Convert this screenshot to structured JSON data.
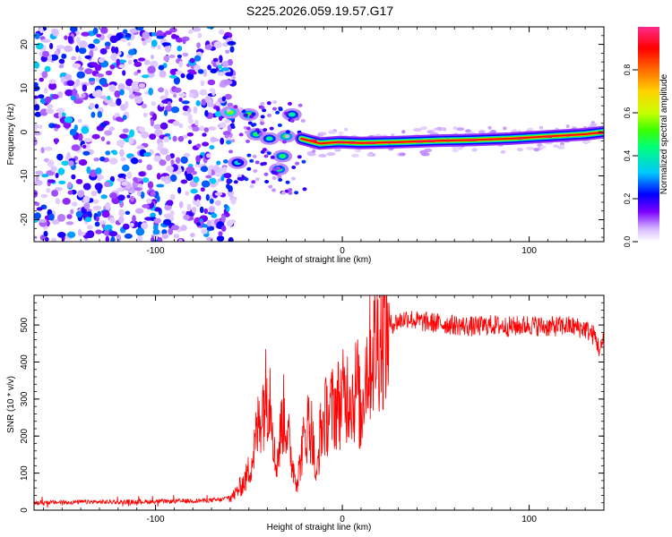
{
  "figure_title": "S225.2026.059.19.57.G17",
  "chart_data": [
    {
      "type": "heatmap",
      "title": "S225.2026.059.19.57.G17",
      "xlabel": "Height of straight line (km)",
      "ylabel": "Frequency (Hz)",
      "xlim": [
        -165,
        140
      ],
      "ylim": [
        -25,
        24
      ],
      "xticks": [
        -100,
        0,
        100
      ],
      "yticks": [
        -20,
        -10,
        0,
        10,
        20
      ],
      "colorbar": {
        "label": "Normalized spectral amplitude",
        "range": [
          0,
          1
        ],
        "ticks": [
          "0.0",
          "0.2",
          "0.4",
          "0.6",
          "0.8"
        ],
        "colors": [
          "#ffffff",
          "#d6b8ff",
          "#7b00ff",
          "#0000ff",
          "#00c8ff",
          "#00ff7a",
          "#3cff00",
          "#c8ff00",
          "#ffd200",
          "#ff6a00",
          "#ff0000",
          "#ff2a8a"
        ]
      },
      "description_regions": [
        {
          "x_range": [
            -165,
            -58
          ],
          "freq_range": [
            -25,
            24
          ],
          "amplitude": "noise 0.05-0.35"
        },
        {
          "x_range": [
            -62,
            -20
          ],
          "freq_range": [
            -14,
            7
          ],
          "amplitude": "scattered 0.2-0.6"
        },
        {
          "x_range": [
            -20,
            140
          ],
          "freq_center": [
            -2,
            0
          ],
          "amplitude": "tone 0.8-1.0"
        }
      ],
      "tone_track": {
        "x": [
          -22,
          -12,
          -2,
          10,
          30,
          50,
          70,
          90,
          110,
          130,
          140
        ],
        "freq": [
          -1.5,
          -2.6,
          -2.3,
          -2.5,
          -2.3,
          -2.0,
          -1.8,
          -1.5,
          -1.0,
          -0.5,
          0.0
        ]
      },
      "blobs": [
        {
          "x": -60,
          "freq": 4.5,
          "amp": 0.55
        },
        {
          "x": -50,
          "freq": 4.0,
          "amp": 0.5
        },
        {
          "x": -46,
          "freq": -0.5,
          "amp": 0.45
        },
        {
          "x": -56,
          "freq": -7.0,
          "amp": 0.35
        },
        {
          "x": -34,
          "freq": -8.5,
          "amp": 0.45
        },
        {
          "x": -32,
          "freq": -5.5,
          "amp": 0.45
        },
        {
          "x": -27,
          "freq": 4.0,
          "amp": 0.4
        },
        {
          "x": -39,
          "freq": -1.5,
          "amp": 0.4
        },
        {
          "x": -30,
          "freq": -1.0,
          "amp": 0.5
        }
      ]
    },
    {
      "type": "line",
      "title": "",
      "xlabel": "Height of straight line (km)",
      "ylabel": "SNR (10 * v/v)",
      "xlim": [
        -165,
        140
      ],
      "ylim": [
        0,
        580
      ],
      "xticks": [
        -100,
        0,
        100
      ],
      "yticks": [
        0,
        100,
        200,
        300,
        400,
        500
      ],
      "series": [
        {
          "name": "SNR",
          "color": "#ff0000",
          "x": [
            -165,
            -140,
            -120,
            -100,
            -80,
            -65,
            -58,
            -52,
            -48,
            -44,
            -40,
            -38,
            -36,
            -34,
            -32,
            -30,
            -28,
            -26,
            -24,
            -22,
            -20,
            -18,
            -16,
            -14,
            -12,
            -10,
            -8,
            -6,
            -4,
            -2,
            0,
            2,
            4,
            6,
            8,
            10,
            12,
            14,
            16,
            18,
            20,
            25,
            30,
            35,
            40,
            50,
            60,
            70,
            80,
            90,
            100,
            110,
            120,
            130,
            135,
            138,
            140
          ],
          "values": [
            20,
            22,
            22,
            23,
            25,
            28,
            40,
            80,
            140,
            260,
            330,
            320,
            120,
            160,
            260,
            240,
            160,
            110,
            80,
            150,
            200,
            240,
            210,
            70,
            200,
            240,
            260,
            270,
            280,
            290,
            300,
            310,
            330,
            300,
            350,
            230,
            380,
            400,
            430,
            450,
            470,
            500,
            510,
            520,
            510,
            505,
            500,
            495,
            500,
            495,
            500,
            495,
            498,
            490,
            470,
            430,
            460
          ]
        }
      ]
    }
  ]
}
